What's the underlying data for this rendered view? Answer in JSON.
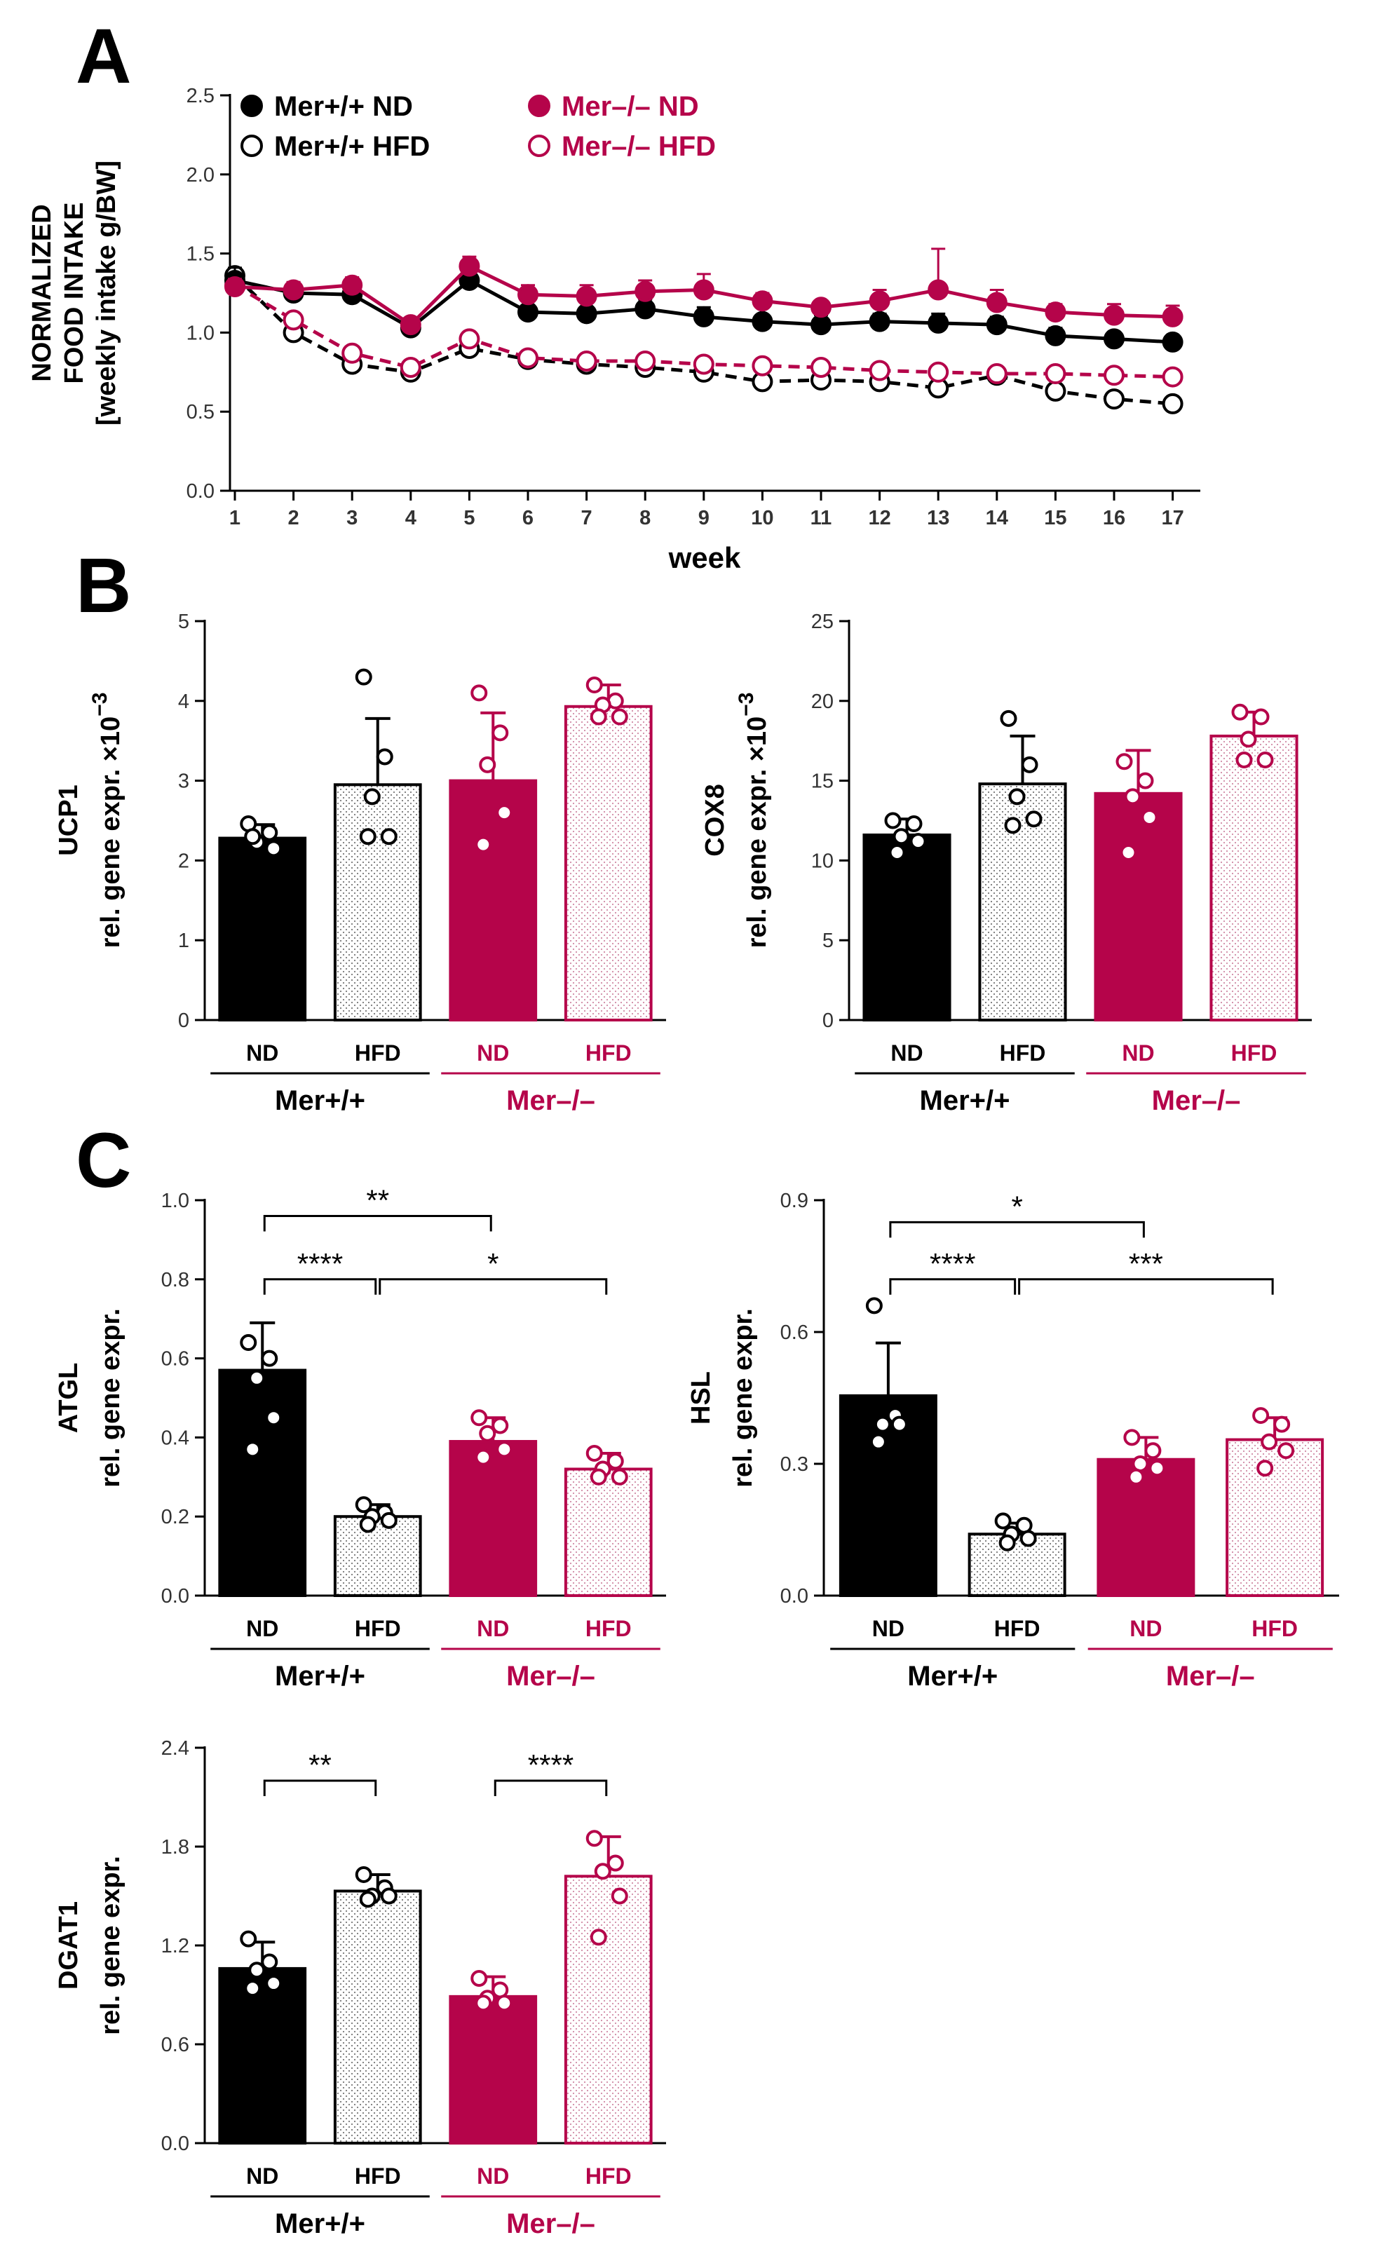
{
  "colors": {
    "black": "#000000",
    "crimson": "#b5044a",
    "dot_fill": "#ffffff"
  },
  "panels": {
    "A": "A",
    "B": "B",
    "C": "C"
  },
  "chart_data": [
    {
      "id": "food",
      "type": "line",
      "panel": "A",
      "ylabel_lines": [
        "NORMALIZED",
        "FOOD INTAKE",
        "[weekly intake g/BW]"
      ],
      "xlabel": "week",
      "ylim": [
        0,
        2.5
      ],
      "yticks": [
        "0.0",
        "0.5",
        "1.0",
        "1.5",
        "2.0",
        "2.5"
      ],
      "x": [
        1,
        2,
        3,
        4,
        5,
        6,
        7,
        8,
        9,
        10,
        11,
        12,
        13,
        14,
        15,
        16,
        17
      ],
      "series": [
        {
          "name": "Mer+/+ ND",
          "color": "black",
          "filled": true,
          "dashed": false,
          "values": [
            1.33,
            1.25,
            1.24,
            1.03,
            1.33,
            1.13,
            1.12,
            1.15,
            1.1,
            1.07,
            1.05,
            1.07,
            1.06,
            1.05,
            0.98,
            0.96,
            0.94
          ],
          "err": [
            0.08,
            0.06,
            0.04,
            0.03,
            0.03,
            0.04,
            0.04,
            0.06,
            0.06,
            0.04,
            0.06,
            0.05,
            0.06,
            0.05,
            0.05,
            0.04,
            0.04
          ]
        },
        {
          "name": "Mer–/– ND",
          "color": "crimson",
          "filled": true,
          "dashed": false,
          "values": [
            1.29,
            1.27,
            1.3,
            1.05,
            1.42,
            1.24,
            1.23,
            1.26,
            1.27,
            1.2,
            1.16,
            1.2,
            1.27,
            1.19,
            1.13,
            1.11,
            1.1
          ],
          "err": [
            0.05,
            0.05,
            0.05,
            0.03,
            0.06,
            0.06,
            0.07,
            0.07,
            0.1,
            0.05,
            0.04,
            0.07,
            0.26,
            0.08,
            0.05,
            0.07,
            0.07
          ]
        },
        {
          "name": "Mer+/+ HFD",
          "color": "black",
          "filled": false,
          "dashed": true,
          "values": [
            1.36,
            1.0,
            0.8,
            0.75,
            0.9,
            0.83,
            0.8,
            0.78,
            0.75,
            0.69,
            0.7,
            0.69,
            0.65,
            0.73,
            0.63,
            0.58,
            0.55
          ],
          "err": [
            0.03,
            0.03,
            0.03,
            0.03,
            0.03,
            0.03,
            0.03,
            0.03,
            0.03,
            0.03,
            0.03,
            0.03,
            0.03,
            0.03,
            0.03,
            0.03,
            0.03
          ]
        },
        {
          "name": "Mer–/– HFD",
          "color": "crimson",
          "filled": false,
          "dashed": true,
          "values": [
            1.3,
            1.08,
            0.87,
            0.78,
            0.96,
            0.84,
            0.82,
            0.82,
            0.8,
            0.79,
            0.78,
            0.76,
            0.75,
            0.74,
            0.74,
            0.73,
            0.72
          ],
          "err": [
            0.03,
            0.03,
            0.03,
            0.03,
            0.03,
            0.03,
            0.03,
            0.03,
            0.03,
            0.03,
            0.03,
            0.03,
            0.03,
            0.03,
            0.03,
            0.03,
            0.03
          ]
        }
      ]
    },
    {
      "id": "ucp1",
      "type": "bar",
      "panel": "B",
      "ylabel_lines": [
        "UCP1",
        "rel. gene expr. ×10",
        "−3"
      ],
      "ylim": [
        0,
        5
      ],
      "yticks": [
        "0",
        "1",
        "2",
        "3",
        "4",
        "5"
      ],
      "categories": [
        "ND",
        "HFD",
        "ND",
        "HFD"
      ],
      "genotypes": [
        "Mer+/+",
        "Mer–/–"
      ],
      "values": [
        2.28,
        2.95,
        3.0,
        3.93
      ],
      "err": [
        0.17,
        0.83,
        0.85,
        0.27
      ],
      "points": [
        [
          2.46,
          2.35,
          2.23,
          2.15,
          2.3
        ],
        [
          4.3,
          3.3,
          2.8,
          2.3,
          2.3
        ],
        [
          4.1,
          3.6,
          3.2,
          2.6,
          2.2
        ],
        [
          4.2,
          4.0,
          3.95,
          3.8,
          3.8
        ]
      ],
      "comparisons": []
    },
    {
      "id": "cox8",
      "type": "bar",
      "panel": "B",
      "ylabel_lines": [
        "COX8",
        "rel. gene expr. ×10",
        "−3"
      ],
      "ylim": [
        0,
        25
      ],
      "yticks": [
        "0",
        "5",
        "10",
        "15",
        "20",
        "25"
      ],
      "categories": [
        "ND",
        "HFD",
        "ND",
        "HFD"
      ],
      "genotypes": [
        "Mer+/+",
        "Mer–/–"
      ],
      "values": [
        11.6,
        14.8,
        14.2,
        17.8
      ],
      "err": [
        1.0,
        3.0,
        2.7,
        1.5
      ],
      "points": [
        [
          12.5,
          12.3,
          11.5,
          11.2,
          10.5
        ],
        [
          18.9,
          16.0,
          14.0,
          12.6,
          12.2
        ],
        [
          16.2,
          15.0,
          14.0,
          12.7,
          10.5
        ],
        [
          19.3,
          19.0,
          17.6,
          16.3,
          16.3
        ]
      ],
      "comparisons": []
    },
    {
      "id": "atgl",
      "type": "bar",
      "panel": "C",
      "ylabel_lines": [
        "ATGL",
        "rel. gene expr."
      ],
      "ylim": [
        0,
        1.0
      ],
      "yticks": [
        "0.0",
        "0.2",
        "0.4",
        "0.6",
        "0.8",
        "1.0"
      ],
      "categories": [
        "ND",
        "HFD",
        "ND",
        "HFD"
      ],
      "genotypes": [
        "Mer+/+",
        "Mer–/–"
      ],
      "values": [
        0.57,
        0.2,
        0.39,
        0.32
      ],
      "err": [
        0.12,
        0.03,
        0.06,
        0.04
      ],
      "points": [
        [
          0.64,
          0.6,
          0.55,
          0.45,
          0.37
        ],
        [
          0.23,
          0.21,
          0.2,
          0.19,
          0.18
        ],
        [
          0.45,
          0.43,
          0.41,
          0.37,
          0.35
        ],
        [
          0.36,
          0.34,
          0.32,
          0.3,
          0.3
        ]
      ],
      "comparisons": [
        {
          "from": 0,
          "to": 2,
          "level": 0.96,
          "label": "**"
        },
        {
          "from": 0,
          "to": 1,
          "level": 0.8,
          "label": "****"
        },
        {
          "from": 1,
          "to": 3,
          "level": 0.8,
          "label": "*"
        }
      ]
    },
    {
      "id": "hsl",
      "type": "bar",
      "panel": "C",
      "ylabel_lines": [
        "HSL",
        "rel. gene expr."
      ],
      "ylim": [
        0,
        0.9
      ],
      "yticks": [
        "0.0",
        "0.3",
        "0.6",
        "0.9"
      ],
      "categories": [
        "ND",
        "HFD",
        "ND",
        "HFD"
      ],
      "genotypes": [
        "Mer+/+",
        "Mer–/–"
      ],
      "values": [
        0.455,
        0.14,
        0.31,
        0.355
      ],
      "err": [
        0.12,
        0.025,
        0.05,
        0.05
      ],
      "points": [
        [
          0.66,
          0.41,
          0.39,
          0.39,
          0.35
        ],
        [
          0.17,
          0.16,
          0.14,
          0.13,
          0.12
        ],
        [
          0.36,
          0.33,
          0.3,
          0.29,
          0.27
        ],
        [
          0.41,
          0.39,
          0.35,
          0.33,
          0.29
        ]
      ],
      "comparisons": [
        {
          "from": 0,
          "to": 2,
          "level": 0.85,
          "label": "*"
        },
        {
          "from": 0,
          "to": 1,
          "level": 0.72,
          "label": "****"
        },
        {
          "from": 1,
          "to": 3,
          "level": 0.72,
          "label": "***"
        }
      ]
    },
    {
      "id": "dgat1",
      "type": "bar",
      "panel": "C",
      "ylabel_lines": [
        "DGAT1",
        "rel. gene expr."
      ],
      "ylim": [
        0,
        2.4
      ],
      "yticks": [
        "0.0",
        "0.6",
        "1.2",
        "1.8",
        "2.4"
      ],
      "categories": [
        "ND",
        "HFD",
        "ND",
        "HFD"
      ],
      "genotypes": [
        "Mer+/+",
        "Mer–/–"
      ],
      "values": [
        1.06,
        1.53,
        0.89,
        1.62
      ],
      "err": [
        0.16,
        0.1,
        0.12,
        0.24
      ],
      "points": [
        [
          1.24,
          1.1,
          1.05,
          0.97,
          0.94
        ],
        [
          1.63,
          1.55,
          1.5,
          1.5,
          1.48
        ],
        [
          1.0,
          0.93,
          0.88,
          0.85,
          0.85
        ],
        [
          1.85,
          1.7,
          1.65,
          1.5,
          1.25
        ]
      ],
      "comparisons": [
        {
          "from": 0,
          "to": 1,
          "level": 2.2,
          "label": "**"
        },
        {
          "from": 2,
          "to": 3,
          "level": 2.2,
          "label": "****"
        }
      ]
    }
  ]
}
